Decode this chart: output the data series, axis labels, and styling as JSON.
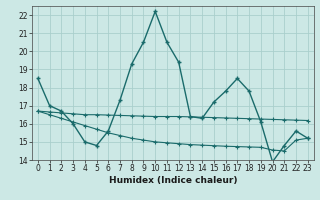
{
  "title": "",
  "xlabel": "Humidex (Indice chaleur)",
  "ylabel": "",
  "bg_color": "#cce8e5",
  "grid_color": "#aacfcc",
  "line_color": "#1a6b6b",
  "xlim": [
    -0.5,
    23.5
  ],
  "ylim": [
    14,
    22.5
  ],
  "yticks": [
    14,
    15,
    16,
    17,
    18,
    19,
    20,
    21,
    22
  ],
  "xtick_labels": [
    "0",
    "1",
    "2",
    "3",
    "4",
    "5",
    "6",
    "7",
    "8",
    "9",
    "10",
    "11",
    "12",
    "13",
    "14",
    "15",
    "16",
    "17",
    "18",
    "19",
    "20",
    "21",
    "22",
    "23"
  ],
  "xticks": [
    0,
    1,
    2,
    3,
    4,
    5,
    6,
    7,
    8,
    9,
    10,
    11,
    12,
    13,
    14,
    15,
    16,
    17,
    18,
    19,
    20,
    21,
    22,
    23
  ],
  "line1_x": [
    0,
    1,
    2,
    3,
    4,
    5,
    6,
    7,
    8,
    9,
    10,
    11,
    12,
    13,
    14,
    15,
    16,
    17,
    18,
    19,
    20,
    21,
    22,
    23
  ],
  "line1_y": [
    18.5,
    17.0,
    16.7,
    16.0,
    15.0,
    14.8,
    15.6,
    17.3,
    19.3,
    20.5,
    22.2,
    20.5,
    19.4,
    16.4,
    16.3,
    17.2,
    17.8,
    18.5,
    17.8,
    16.1,
    13.9,
    14.8,
    15.6,
    15.2
  ],
  "line2_x": [
    0,
    1,
    2,
    3,
    4,
    5,
    6,
    7,
    8,
    9,
    10,
    11,
    12,
    13,
    14,
    15,
    16,
    17,
    18,
    19,
    20,
    21,
    22,
    23
  ],
  "line2_y": [
    16.7,
    16.65,
    16.6,
    16.55,
    16.5,
    16.5,
    16.48,
    16.46,
    16.44,
    16.42,
    16.4,
    16.4,
    16.4,
    16.38,
    16.36,
    16.34,
    16.32,
    16.3,
    16.28,
    16.26,
    16.24,
    16.22,
    16.2,
    16.18
  ],
  "line3_x": [
    0,
    1,
    2,
    3,
    4,
    5,
    6,
    7,
    8,
    9,
    10,
    11,
    12,
    13,
    14,
    15,
    16,
    17,
    18,
    19,
    20,
    21,
    22,
    23
  ],
  "line3_y": [
    16.7,
    16.5,
    16.3,
    16.1,
    15.9,
    15.7,
    15.5,
    15.35,
    15.2,
    15.1,
    15.0,
    14.95,
    14.9,
    14.85,
    14.82,
    14.79,
    14.76,
    14.74,
    14.72,
    14.7,
    14.55,
    14.5,
    15.1,
    15.2
  ]
}
